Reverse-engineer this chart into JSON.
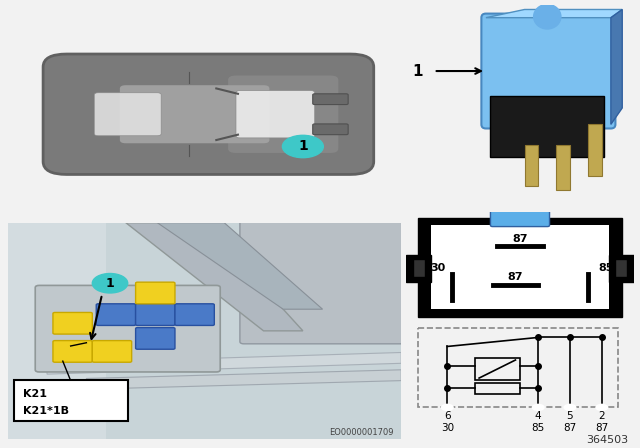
{
  "bg_color": "#f2f2f2",
  "top_panel_bg": "#e8e8e8",
  "bottom_panel_bg": "#d0d8dc",
  "right_bg": "#f2f2f2",
  "part_number": "364503",
  "diagram_code": "EO0000001709",
  "relay_blue": "#5baee8",
  "k_label1": "K21",
  "k_label2": "K21*1B",
  "teal": "#3ec8c8",
  "yellow_relay": "#f0d020",
  "blue_relay": "#4a7ac8"
}
